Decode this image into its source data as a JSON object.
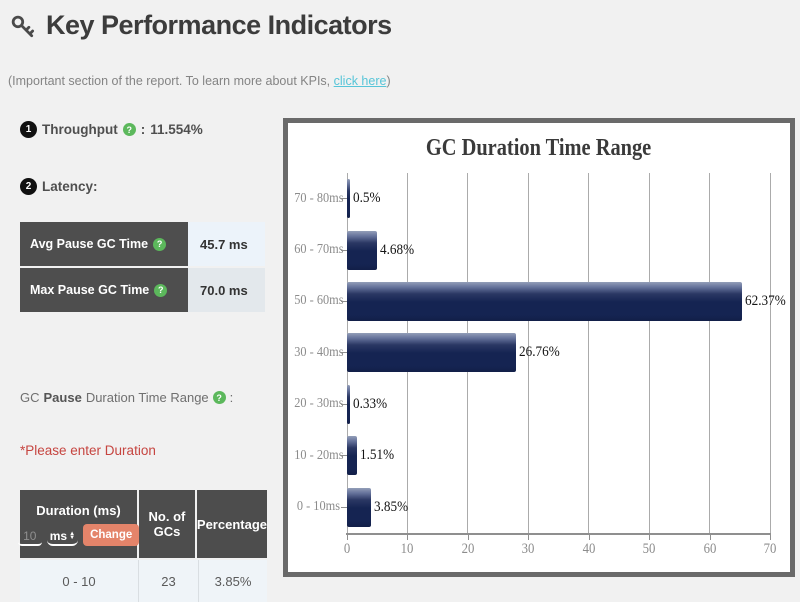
{
  "page": {
    "title": "Key Performance Indicators",
    "subtitle_prefix": "(Important section of the report. To learn more about KPIs, ",
    "subtitle_link": "click here",
    "subtitle_suffix": ")"
  },
  "throughput": {
    "badge": "1",
    "label": "Throughput",
    "colon": ":",
    "value": "11.554%"
  },
  "latency": {
    "badge": "2",
    "label": "Latency:"
  },
  "help_icon_glyph": "?",
  "latency_table": {
    "rows": [
      {
        "label": "Avg Pause GC Time",
        "value": "45.7 ms"
      },
      {
        "label": "Max Pause GC Time",
        "value": "70.0 ms"
      }
    ]
  },
  "gc_pause_line": {
    "part1": "GC",
    "part2_bold": "Pause",
    "part3": "Duration Time Range",
    "colon": ":"
  },
  "duration_warning": "*Please enter Duration",
  "duration_table": {
    "header": {
      "col1": "Duration (ms)",
      "col2": "No. of GCs",
      "col3": "Percentage"
    },
    "controls": {
      "input_placeholder": "10",
      "unit_label": "ms",
      "arrow_up": "▲",
      "arrow_down": "▼",
      "change_button": "Change"
    },
    "rows": [
      {
        "duration": "0 - 10",
        "gcs": "23",
        "percentage": "3.85%"
      }
    ]
  },
  "chart_data": {
    "type": "bar",
    "orientation": "horizontal",
    "title": "GC Duration Time Range",
    "categories": [
      "70 - 80ms",
      "60 - 70ms",
      "50 - 60ms",
      "30 - 40ms",
      "20 - 30ms",
      "10 - 20ms",
      "0 - 10ms"
    ],
    "values": [
      0.5,
      4.68,
      62.37,
      26.76,
      0.33,
      1.51,
      3.85
    ],
    "value_labels": [
      "0.5%",
      "4.68%",
      "62.37%",
      "26.76%",
      "0.33%",
      "1.51%",
      "3.85%"
    ],
    "xlim": [
      0,
      70
    ],
    "x_ticks": [
      0,
      10,
      20,
      30,
      40,
      50,
      60,
      70
    ],
    "grid": true,
    "legend": "none",
    "bar_color": "#152452",
    "bar_bevel_color": "#939eb8"
  },
  "colors": {
    "page_bg": "#f1f1f1",
    "dark_cell": "#4d4d4d",
    "help_green": "#5cb85c",
    "link_teal": "#57c5d8",
    "warning_red": "#c64540",
    "change_orange": "#e4846a",
    "chart_frame": "#6a6a6a"
  }
}
